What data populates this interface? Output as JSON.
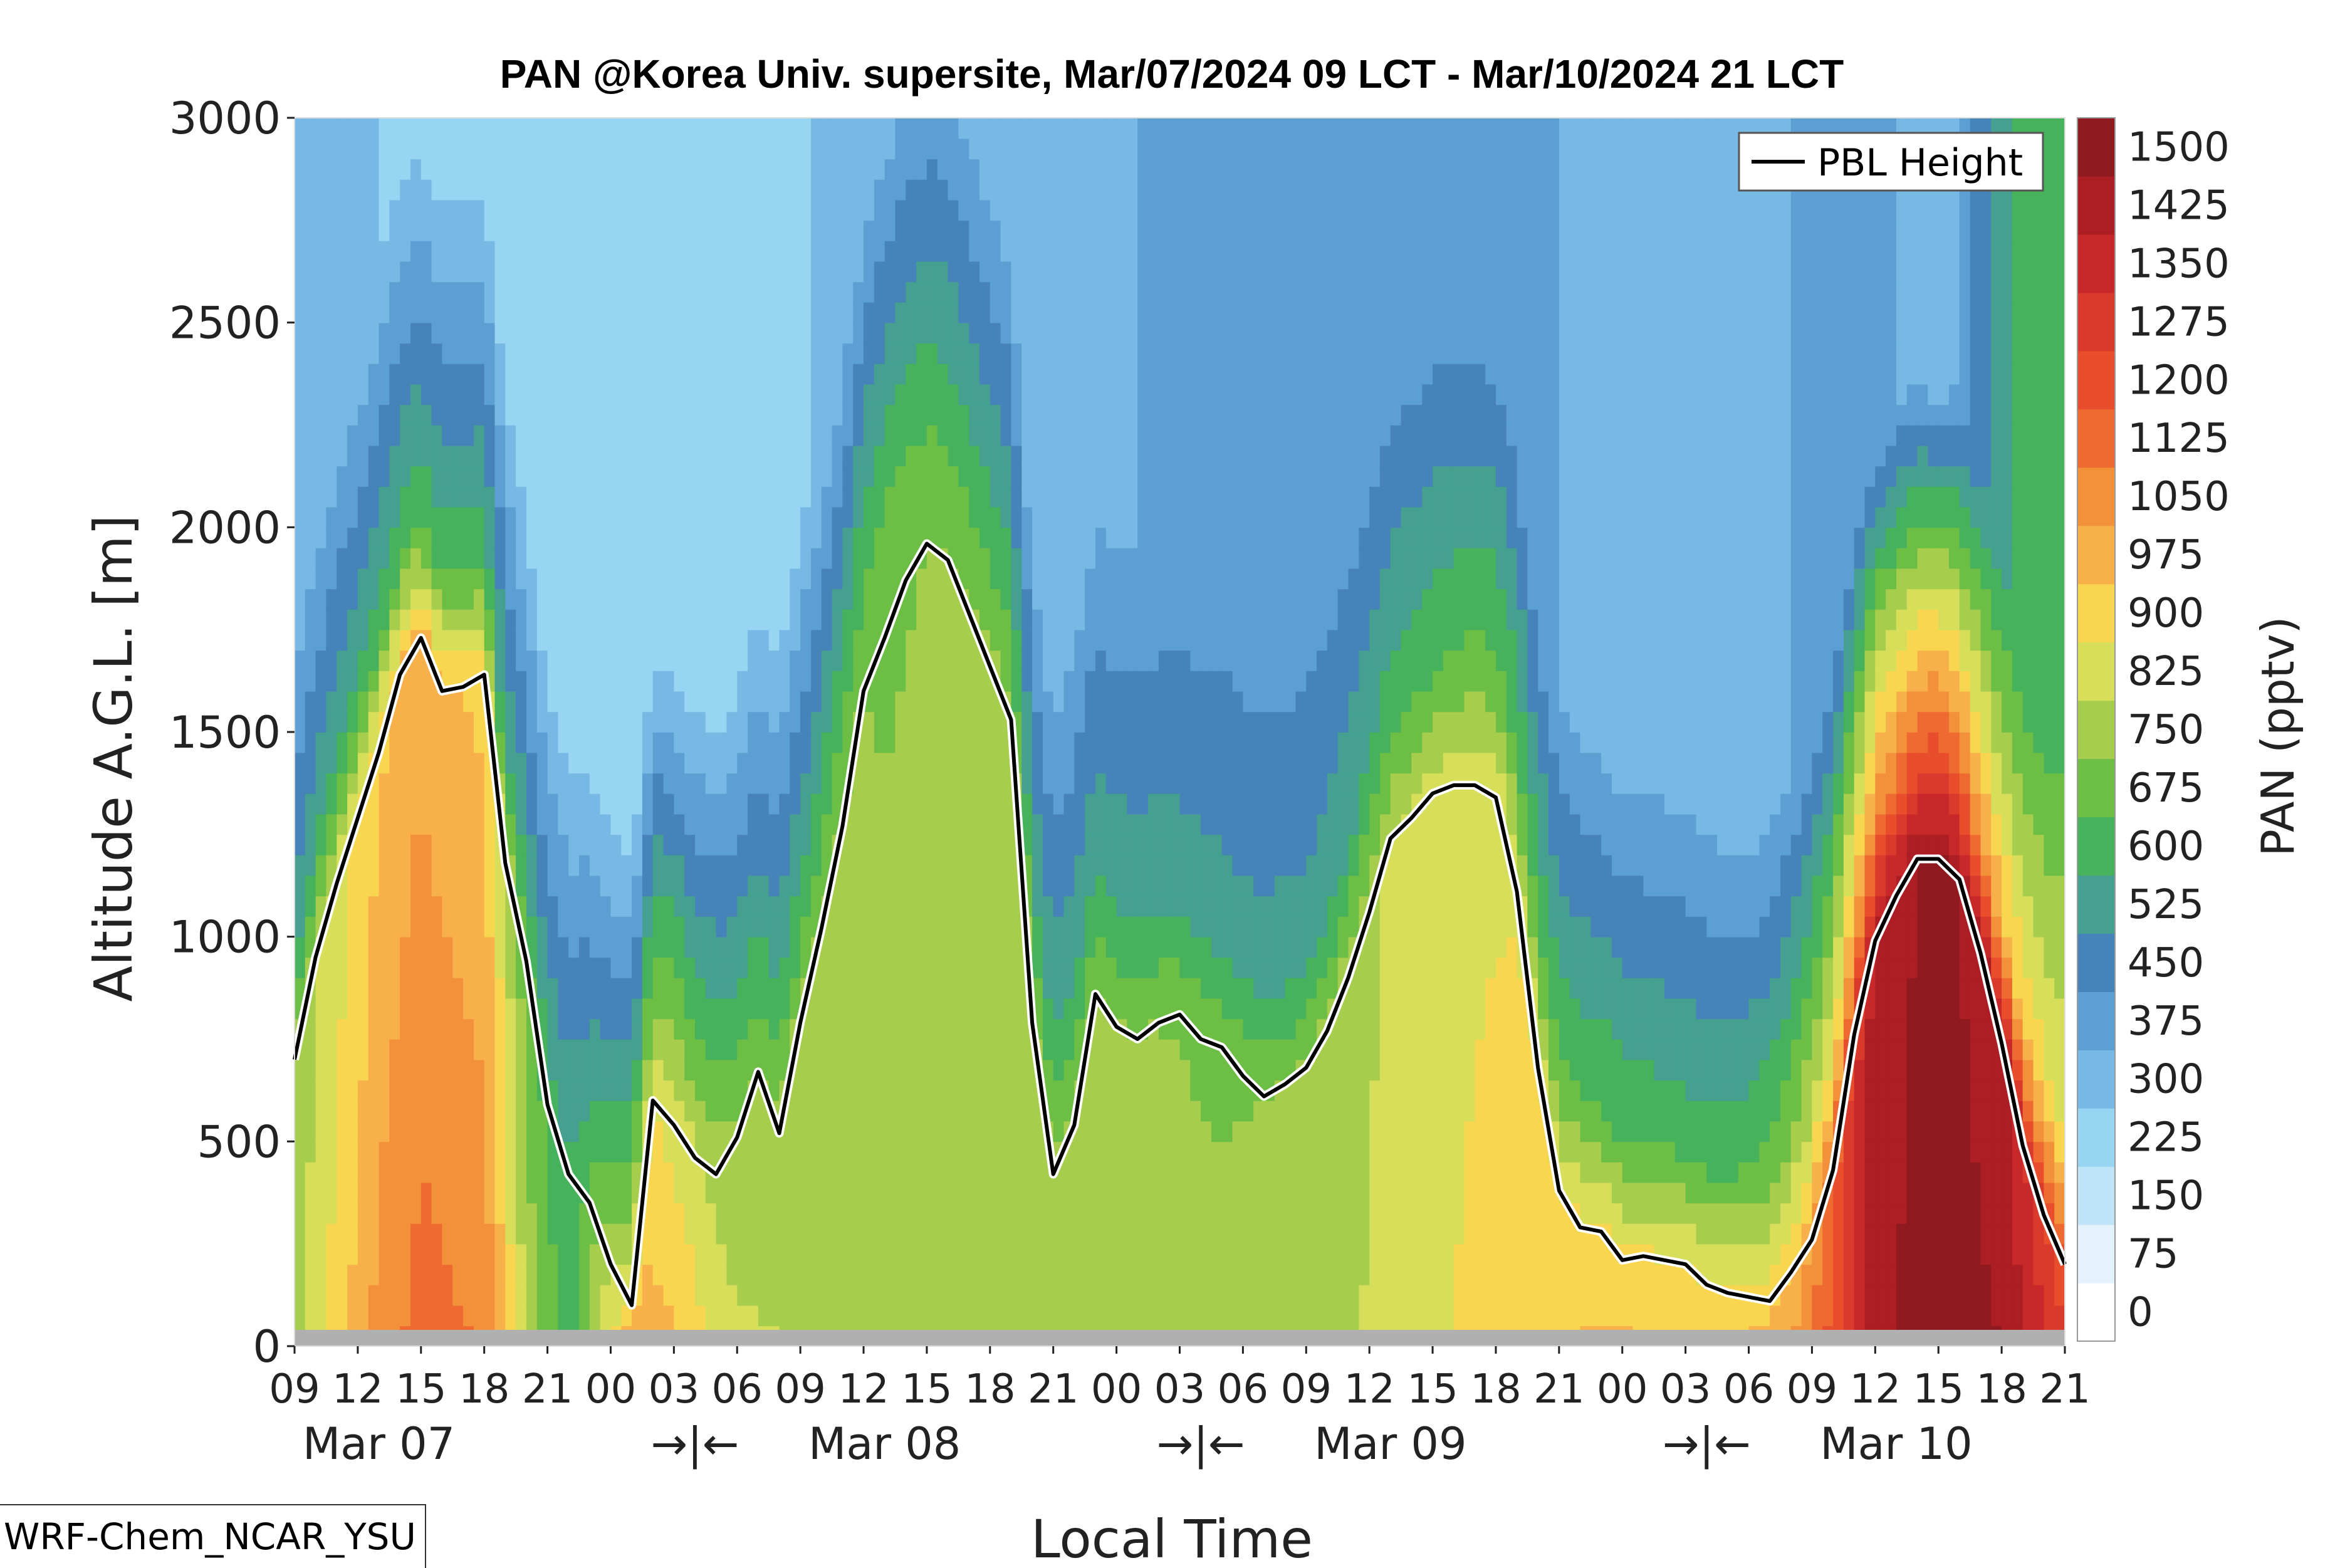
{
  "chart_data": {
    "type": "heatmap",
    "title": "PAN @Korea Univ. supersite, Mar/07/2024 09 LCT - Mar/10/2024 21 LCT",
    "xlabel": "Local Time",
    "ylabel": "Altitude A.G.L. [m]",
    "ylim": [
      0,
      3000
    ],
    "y_ticks": [
      "0",
      "500",
      "1000",
      "1500",
      "2000",
      "2500",
      "3000"
    ],
    "x_tick_labels": [
      "09",
      "12",
      "15",
      "18",
      "21",
      "00",
      "03",
      "06",
      "09",
      "12",
      "15",
      "18",
      "21",
      "00",
      "03",
      "06",
      "09",
      "12",
      "15",
      "18",
      "21",
      "00",
      "03",
      "06",
      "09",
      "12",
      "15",
      "18",
      "21"
    ],
    "x_tick_hours": [
      0,
      3,
      6,
      9,
      12,
      15,
      18,
      21,
      24,
      27,
      30,
      33,
      36,
      39,
      42,
      45,
      48,
      51,
      54,
      57,
      60,
      63,
      66,
      69,
      72,
      75,
      78,
      81,
      84
    ],
    "date_labels": [
      {
        "text": "Mar 07",
        "hour": 4
      },
      {
        "text": "→|←",
        "hour": 19
      },
      {
        "text": "Mar 08",
        "hour": 28
      },
      {
        "text": "→|←",
        "hour": 43
      },
      {
        "text": "Mar 09",
        "hour": 52
      },
      {
        "text": "→|←",
        "hour": 67
      },
      {
        "text": "Mar 10",
        "hour": 76
      }
    ],
    "colorbar": {
      "label": "PAN (pptv)",
      "levels": [
        0,
        75,
        150,
        225,
        300,
        375,
        450,
        525,
        600,
        675,
        750,
        825,
        900,
        975,
        1050,
        1125,
        1200,
        1275,
        1350,
        1425,
        1500
      ],
      "colors": [
        "#ffffff",
        "#e4f3fb",
        "#bfe4f7",
        "#97d5f3",
        "#77b8e4",
        "#5c9fd3",
        "#4583b8",
        "#45a08f",
        "#47b25c",
        "#6dbe45",
        "#a7cd4d",
        "#d6de5a",
        "#f8d64f",
        "#f7b04a",
        "#f3913a",
        "#ee6a30",
        "#e94e2c",
        "#d93a2c",
        "#c7292a",
        "#ac1d24",
        "#8f1a1f"
      ]
    },
    "pbl_height": {
      "name": "PBL Height",
      "hours": [
        0,
        1,
        2,
        3,
        4,
        5,
        6,
        7,
        8,
        9,
        10,
        11,
        12,
        13,
        14,
        15,
        16,
        17,
        18,
        19,
        20,
        21,
        22,
        23,
        24,
        25,
        26,
        27,
        28,
        29,
        30,
        31,
        32,
        33,
        34,
        35,
        36,
        37,
        38,
        39,
        40,
        41,
        42,
        43,
        44,
        45,
        46,
        47,
        48,
        49,
        50,
        51,
        52,
        53,
        54,
        55,
        56,
        57,
        58,
        59,
        60,
        61,
        62,
        63,
        64,
        65,
        66,
        67,
        68,
        69,
        70,
        71,
        72,
        73,
        74,
        75,
        76,
        77,
        78,
        79,
        80,
        81,
        82,
        83,
        84
      ],
      "values": [
        700,
        950,
        1130,
        1290,
        1450,
        1640,
        1730,
        1600,
        1610,
        1640,
        1180,
        940,
        590,
        420,
        350,
        200,
        100,
        600,
        540,
        460,
        420,
        510,
        670,
        520,
        790,
        1020,
        1270,
        1600,
        1730,
        1870,
        1960,
        1920,
        1790,
        1660,
        1530,
        790,
        420,
        540,
        860,
        780,
        750,
        790,
        810,
        750,
        730,
        660,
        610,
        640,
        680,
        770,
        900,
        1060,
        1240,
        1290,
        1350,
        1370,
        1370,
        1340,
        1110,
        680,
        380,
        290,
        280,
        210,
        220,
        210,
        200,
        150,
        130,
        120,
        110,
        180,
        260,
        430,
        760,
        990,
        1100,
        1190,
        1190,
        1140,
        960,
        740,
        490,
        320,
        200
      ]
    },
    "field_profiles_note": "Main PAN field is drawn as vertical profiles per hour (below/above PBL) interpolated between keyframes.",
    "keyframes": [
      {
        "hour": 0,
        "low": 790,
        "mid": 770,
        "top": 560,
        "aloft": 300
      },
      {
        "hour": 4,
        "low": 1080,
        "mid": 960,
        "top": 640,
        "aloft": 300
      },
      {
        "hour": 6,
        "low": 1160,
        "mid": 1020,
        "top": 660,
        "aloft": 290
      },
      {
        "hour": 9,
        "low": 1120,
        "mid": 950,
        "top": 640,
        "aloft": 290
      },
      {
        "hour": 11,
        "low": 820,
        "mid": 700,
        "top": 560,
        "aloft": 260
      },
      {
        "hour": 13,
        "low": 640,
        "mid": 600,
        "top": 520,
        "aloft": 230
      },
      {
        "hour": 16,
        "low": 1060,
        "mid": 900,
        "top": 700,
        "aloft": 230
      },
      {
        "hour": 18,
        "low": 980,
        "mid": 880,
        "top": 720,
        "aloft": 240
      },
      {
        "hour": 21,
        "low": 840,
        "mid": 760,
        "top": 620,
        "aloft": 250
      },
      {
        "hour": 24,
        "low": 820,
        "mid": 780,
        "top": 620,
        "aloft": 290
      },
      {
        "hour": 28,
        "low": 790,
        "mid": 740,
        "top": 680,
        "aloft": 360
      },
      {
        "hour": 32,
        "low": 800,
        "mid": 760,
        "top": 660,
        "aloft": 350
      },
      {
        "hour": 35,
        "low": 820,
        "mid": 790,
        "top": 620,
        "aloft": 340
      },
      {
        "hour": 38,
        "low": 790,
        "mid": 760,
        "top": 600,
        "aloft": 360
      },
      {
        "hour": 44,
        "low": 770,
        "mid": 740,
        "top": 560,
        "aloft": 400
      },
      {
        "hour": 48,
        "low": 780,
        "mid": 760,
        "top": 560,
        "aloft": 400
      },
      {
        "hour": 52,
        "low": 850,
        "mid": 830,
        "top": 640,
        "aloft": 400
      },
      {
        "hour": 56,
        "low": 920,
        "mid": 880,
        "top": 700,
        "aloft": 390
      },
      {
        "hour": 59,
        "low": 960,
        "mid": 900,
        "top": 690,
        "aloft": 380
      },
      {
        "hour": 62,
        "low": 990,
        "mid": 920,
        "top": 680,
        "aloft": 360
      },
      {
        "hour": 66,
        "low": 970,
        "mid": 900,
        "top": 640,
        "aloft": 340
      },
      {
        "hour": 69,
        "low": 990,
        "mid": 920,
        "top": 680,
        "aloft": 320
      },
      {
        "hour": 71,
        "low": 1060,
        "mid": 960,
        "top": 760,
        "aloft": 380
      },
      {
        "hour": 73,
        "low": 1240,
        "mid": 1150,
        "top": 900,
        "aloft": 450
      },
      {
        "hour": 75,
        "low": 1480,
        "mid": 1460,
        "top": 1100,
        "aloft": 420
      },
      {
        "hour": 78,
        "low": 1540,
        "mid": 1520,
        "top": 1200,
        "aloft": 300
      },
      {
        "hour": 81,
        "low": 1500,
        "mid": 1450,
        "top": 1000,
        "aloft": 580
      },
      {
        "hour": 84,
        "low": 1300,
        "mid": 1200,
        "top": 900,
        "aloft": 680
      }
    ]
  },
  "legend": {
    "entry_label": "PBL Height"
  },
  "footnote": "WRF-Chem_NCAR_YSU"
}
